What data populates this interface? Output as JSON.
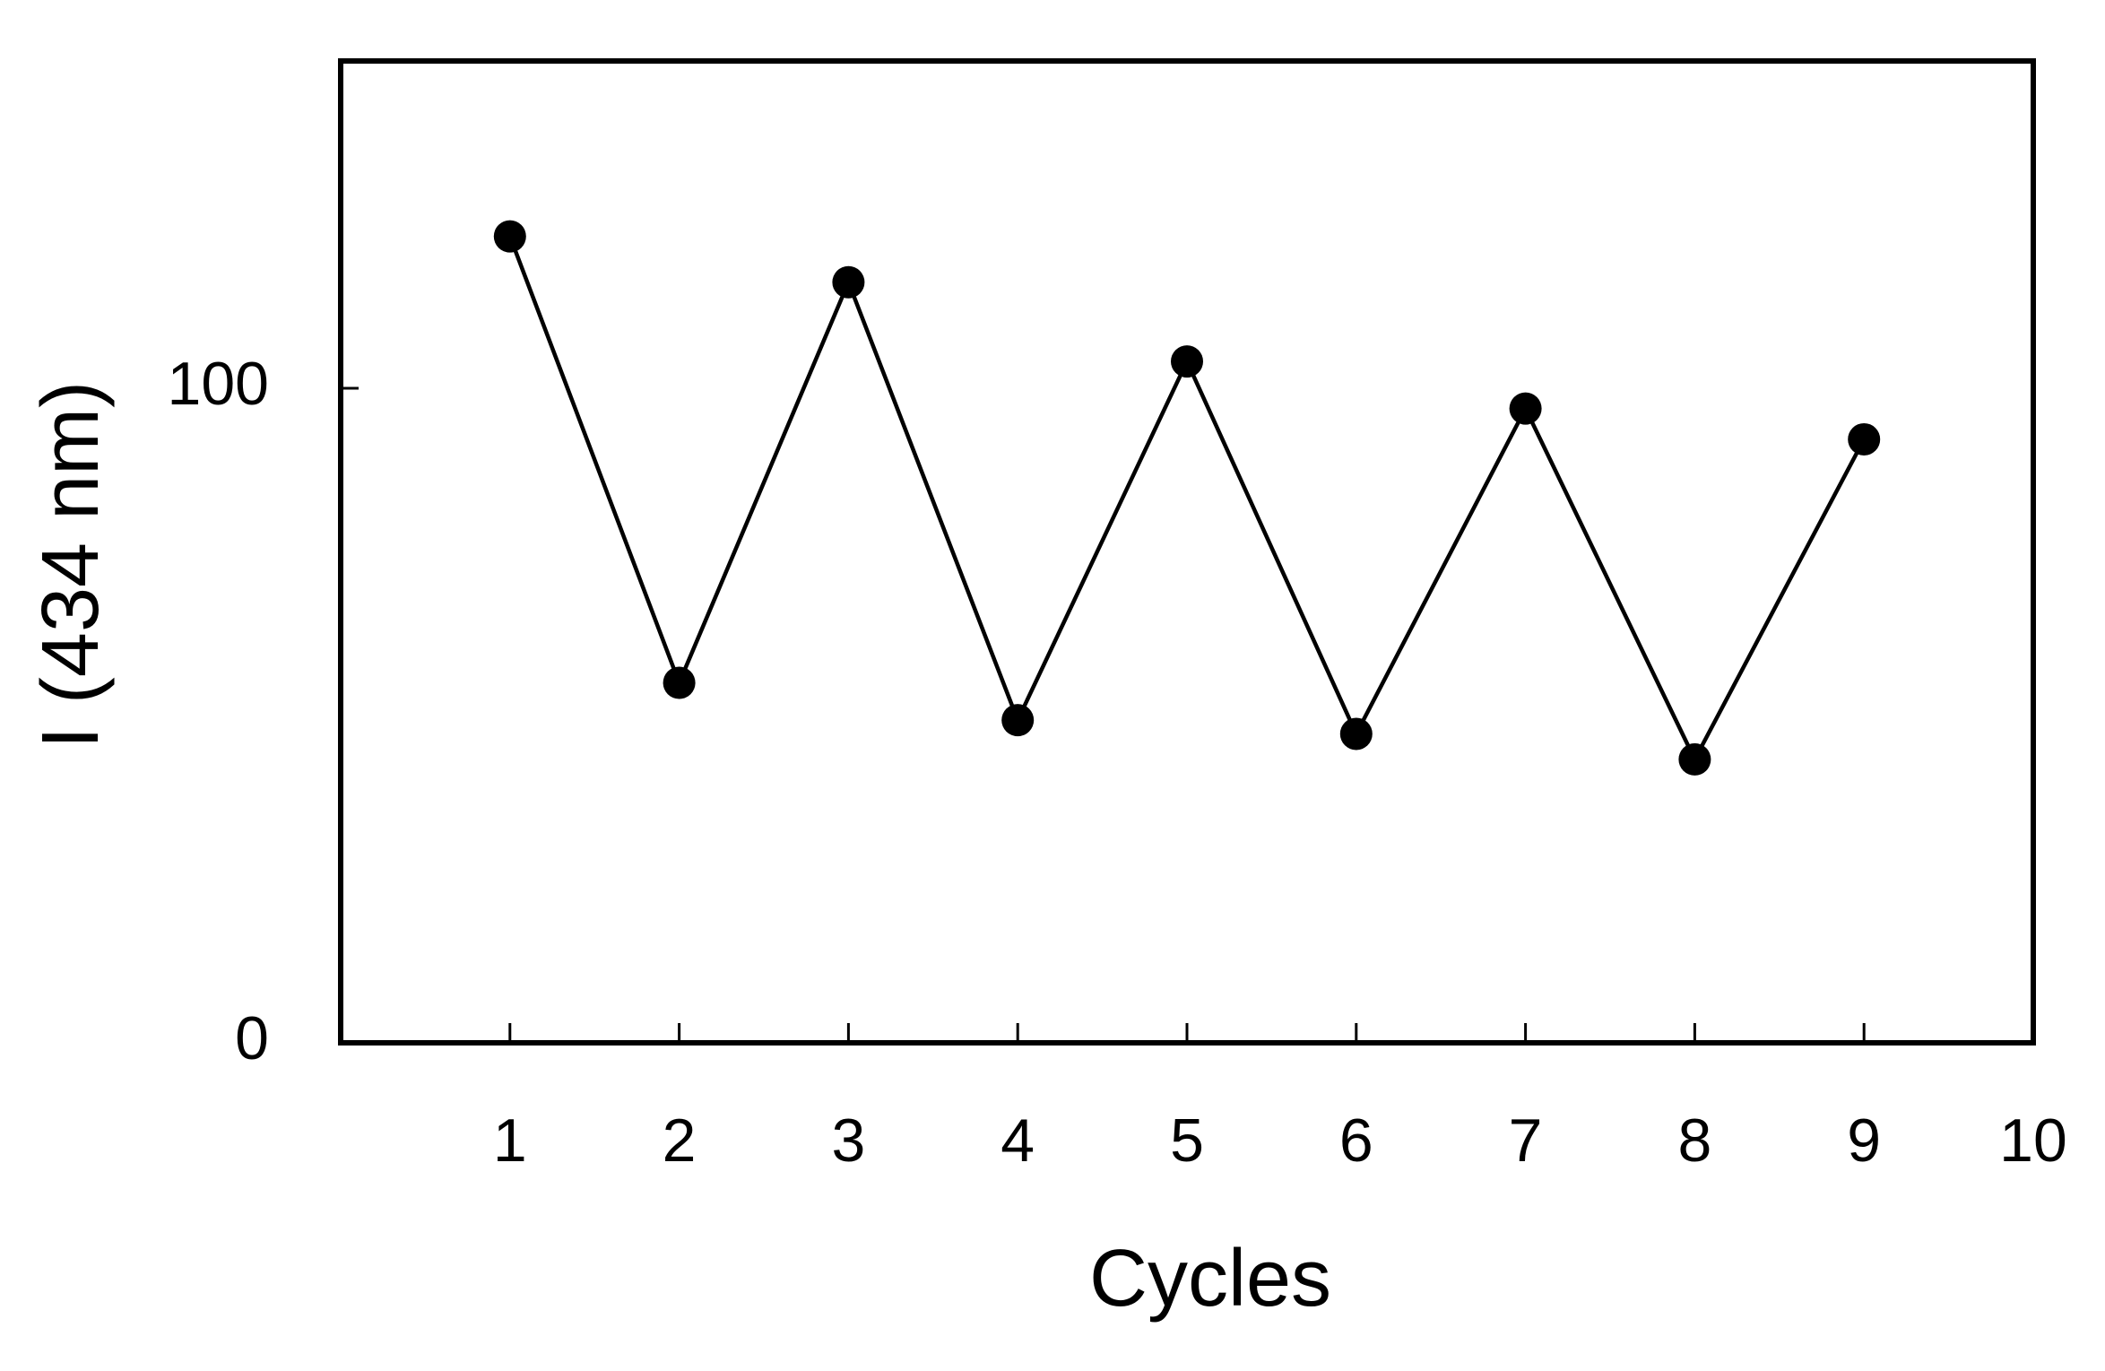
{
  "chart_data": {
    "type": "line",
    "xlabel": "Cycles",
    "ylabel": "I (434 nm)",
    "x": [
      1,
      2,
      3,
      4,
      5,
      6,
      7,
      8,
      9
    ],
    "series": [
      {
        "color": "#000000",
        "values": [
          123.2,
          55.0,
          116.2,
          49.3,
          104.1,
          47.2,
          96.9,
          43.3,
          92.2
        ]
      }
    ],
    "xlim": [
      0,
      10
    ],
    "xticks": [
      1,
      2,
      3,
      4,
      5,
      6,
      7,
      8,
      9,
      10
    ],
    "ylim": [
      0,
      150
    ],
    "yticks": [
      0,
      100
    ],
    "grid": false
  }
}
